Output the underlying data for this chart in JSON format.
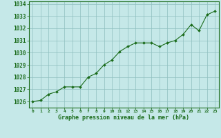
{
  "x": [
    0,
    1,
    2,
    3,
    4,
    5,
    6,
    7,
    8,
    9,
    10,
    11,
    12,
    13,
    14,
    15,
    16,
    17,
    18,
    19,
    20,
    21,
    22,
    23
  ],
  "y": [
    1026.0,
    1026.1,
    1026.6,
    1026.8,
    1027.2,
    1027.2,
    1027.2,
    1028.0,
    1028.3,
    1029.0,
    1029.4,
    1030.1,
    1030.5,
    1030.8,
    1030.8,
    1030.8,
    1030.5,
    1030.8,
    1031.0,
    1031.5,
    1032.3,
    1031.8,
    1033.1,
    1033.4
  ],
  "line_color": "#1a6b1a",
  "marker_color": "#1a6b1a",
  "bg_color": "#c5e8e8",
  "grid_color": "#8fbfbf",
  "axis_label_color": "#1a6b1a",
  "tick_color": "#1a6b1a",
  "border_color": "#1a6b1a",
  "xlabel": "Graphe pression niveau de la mer (hPa)",
  "ylim": [
    1025.5,
    1034.2
  ],
  "yticks": [
    1026,
    1027,
    1028,
    1029,
    1030,
    1031,
    1032,
    1033,
    1034
  ],
  "xticks": [
    0,
    1,
    2,
    3,
    4,
    5,
    6,
    7,
    8,
    9,
    10,
    11,
    12,
    13,
    14,
    15,
    16,
    17,
    18,
    19,
    20,
    21,
    22,
    23
  ]
}
